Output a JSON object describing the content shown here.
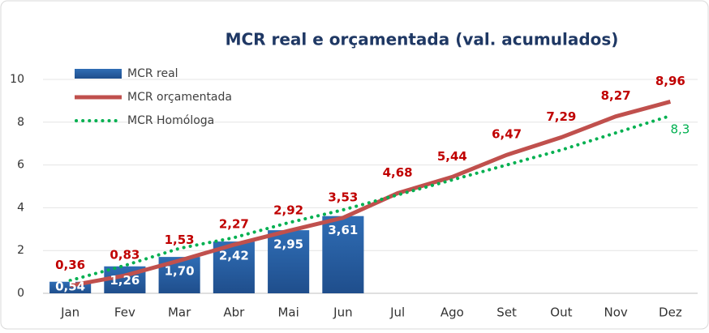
{
  "chart_data": {
    "type": "bar-line",
    "title": "MCR real e orçamentada (val. acumulados)",
    "categories": [
      "Jan",
      "Fev",
      "Mar",
      "Abr",
      "Mai",
      "Jun",
      "Jul",
      "Ago",
      "Set",
      "Out",
      "Nov",
      "Dez"
    ],
    "series": [
      {
        "name": "MCR real",
        "type": "bar",
        "color": "#2f6db5",
        "values": [
          0.54,
          1.26,
          1.7,
          2.42,
          2.95,
          3.61,
          null,
          null,
          null,
          null,
          null,
          null
        ],
        "value_labels": [
          "0,54",
          "1,26",
          "1,70",
          "2,42",
          "2,95",
          "3,61",
          null,
          null,
          null,
          null,
          null,
          null
        ]
      },
      {
        "name": "MCR orçamentada",
        "type": "line",
        "style": "solid",
        "color": "#c0504d",
        "label_color": "#c00000",
        "values": [
          0.36,
          0.83,
          1.53,
          2.27,
          2.92,
          3.53,
          4.68,
          5.44,
          6.47,
          7.29,
          8.27,
          8.96
        ],
        "value_labels": [
          "0,36",
          "0,83",
          "1,53",
          "2,27",
          "2,92",
          "3,53",
          "4,68",
          "5,44",
          "6,47",
          "7,29",
          "8,27",
          "8,96"
        ]
      },
      {
        "name": "MCR Homóloga",
        "type": "line",
        "style": "dotted",
        "color": "#00b050",
        "label_color": "#00b050",
        "values": [
          0.6,
          1.3,
          2.1,
          2.6,
          3.3,
          3.9,
          4.6,
          5.3,
          6.0,
          6.7,
          7.5,
          8.3
        ],
        "value_labels": [
          null,
          null,
          null,
          null,
          null,
          null,
          null,
          null,
          null,
          null,
          null,
          "8,3"
        ]
      }
    ],
    "ylim": [
      0,
      10
    ],
    "yticks": [
      0,
      2,
      4,
      6,
      8,
      10
    ],
    "grid": true,
    "legend": "upper left"
  }
}
